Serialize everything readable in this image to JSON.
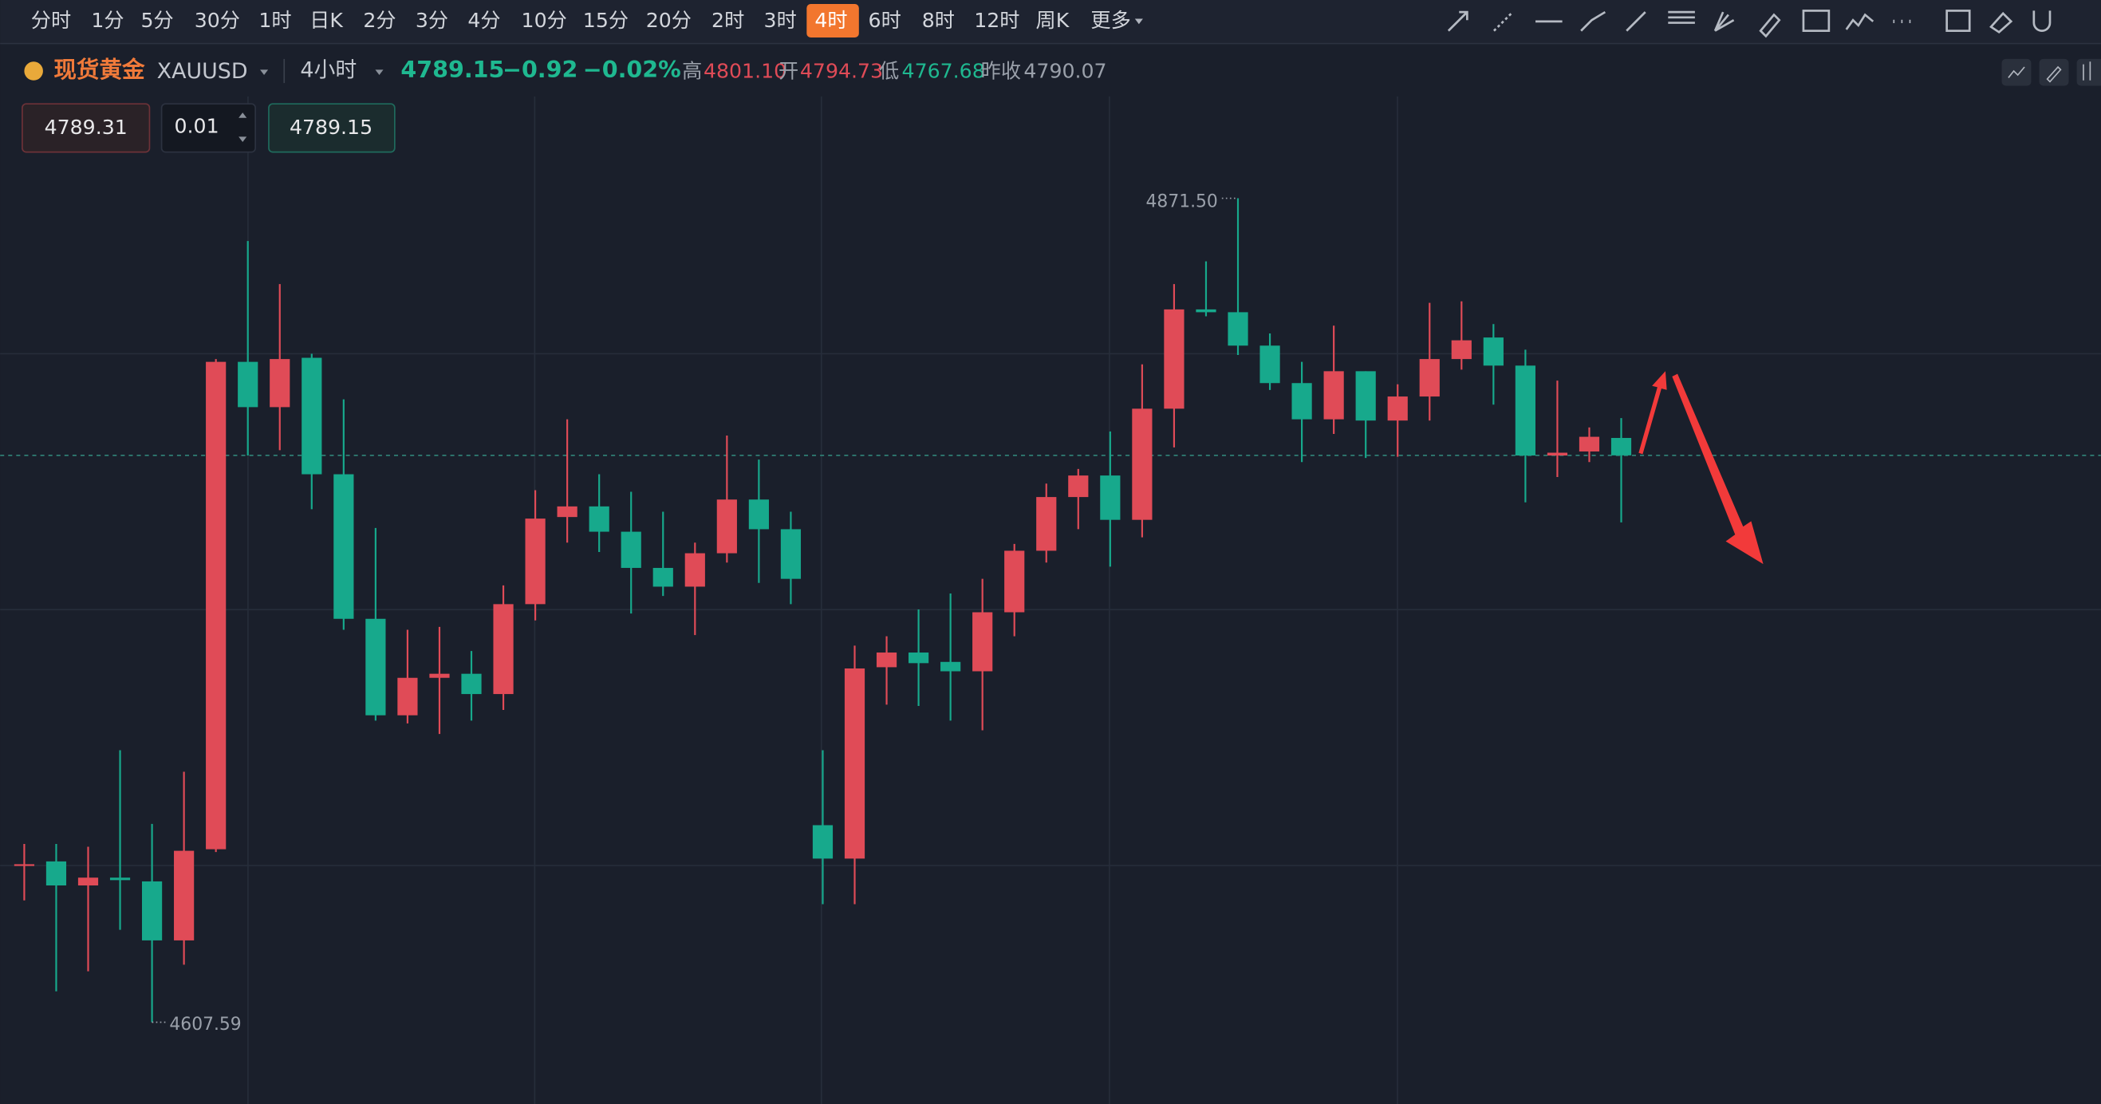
{
  "toolbar": {
    "timeframes": [
      "分时",
      "1分",
      "5分",
      "30分",
      "1时",
      "日K",
      "2分",
      "3分",
      "4分",
      "10分",
      "15分",
      "20分",
      "2时",
      "3时",
      "4时",
      "6时",
      "8时",
      "12时",
      "周K"
    ],
    "active_index": 14,
    "more": "更多"
  },
  "header": {
    "name": "现货黄金",
    "symbol": "XAUUSD",
    "interval": "4小时",
    "price": "4789.15",
    "change": "−0.92",
    "change_pct": "−0.02%",
    "high_label": "高",
    "high": "4801.10",
    "open_label": "开",
    "open": "4794.73",
    "low_label": "低",
    "low": "4767.68",
    "prev_close_label": "昨收",
    "prev_close": "4790.07"
  },
  "order": {
    "sell": "4789.31",
    "qty": "0.01",
    "buy": "4789.15"
  },
  "chart_data": {
    "type": "candlestick",
    "up_color": "#e04b57",
    "down_color": "#17a98c",
    "ylim": [
      4581.4,
      4904.1
    ],
    "open": [
      4658.2,
      4659.1,
      4651.4,
      4653.9,
      4652.7,
      4633.8,
      4663.0,
      4819.1,
      4804.6,
      4820.4,
      4783.1,
      4736.8,
      4705.9,
      4717.9,
      4719.2,
      4712.7,
      4741.5,
      4769.4,
      4772.8,
      4764.7,
      4753.1,
      4747.1,
      4757.8,
      4775.0,
      4765.5,
      4670.7,
      4660.0,
      4721.3,
      4726.0,
      4723.0,
      4720.0,
      4738.9,
      4758.6,
      4775.8,
      4782.7,
      4768.5,
      4804.1,
      4835.9,
      4835.0,
      4824.3,
      4812.3,
      4800.7,
      4816.1,
      4800.3,
      4808.0,
      4820.0,
      4826.9,
      4817.9,
      4789.1,
      4790.4,
      4794.73
    ],
    "high": [
      4664.7,
      4664.7,
      4663.8,
      4694.7,
      4671.1,
      4687.8,
      4820.0,
      4857.8,
      4844.0,
      4821.7,
      4807.1,
      4765.9,
      4733.3,
      4734.2,
      4726.5,
      4747.5,
      4778.0,
      4800.7,
      4783.1,
      4777.5,
      4771.1,
      4761.2,
      4795.5,
      4787.8,
      4771.1,
      4694.7,
      4728.2,
      4731.2,
      4739.8,
      4744.9,
      4749.6,
      4760.8,
      4780.1,
      4784.8,
      4796.8,
      4818.3,
      4844.0,
      4851.3,
      4871.5,
      4828.2,
      4819.1,
      4830.7,
      4816.1,
      4811.9,
      4838.0,
      4838.5,
      4831.2,
      4823.0,
      4813.1,
      4798.1,
      4801.1
    ],
    "low": [
      4646.6,
      4617.5,
      4623.9,
      4637.2,
      4607.59,
      4626.0,
      4662.1,
      4789.1,
      4790.8,
      4771.9,
      4733.3,
      4704.2,
      4703.3,
      4699.9,
      4704.2,
      4707.6,
      4736.3,
      4761.2,
      4758.2,
      4738.5,
      4744.1,
      4731.6,
      4754.8,
      4748.3,
      4741.5,
      4645.4,
      4645.4,
      4709.3,
      4708.9,
      4704.2,
      4701.1,
      4731.2,
      4754.8,
      4765.5,
      4753.5,
      4762.9,
      4791.7,
      4833.7,
      4821.3,
      4810.1,
      4787.0,
      4796.0,
      4788.3,
      4788.7,
      4800.3,
      4816.6,
      4805.4,
      4774.1,
      4782.2,
      4787.0,
      4767.68
    ],
    "close": [
      4658.2,
      4651.4,
      4653.9,
      4653.1,
      4633.8,
      4662.5,
      4819.1,
      4804.6,
      4820.0,
      4783.1,
      4736.8,
      4705.9,
      4717.9,
      4719.2,
      4712.7,
      4741.5,
      4768.9,
      4772.8,
      4764.7,
      4753.1,
      4747.1,
      4757.8,
      4775.0,
      4765.5,
      4749.6,
      4660.0,
      4720.9,
      4726.0,
      4722.6,
      4720.0,
      4738.9,
      4758.6,
      4775.8,
      4782.7,
      4768.5,
      4804.1,
      4835.9,
      4835.0,
      4824.3,
      4812.3,
      4800.7,
      4816.1,
      4800.3,
      4808.0,
      4820.0,
      4826.0,
      4817.9,
      4789.1,
      4790.0,
      4795.1,
      4789.15
    ],
    "max_label": "4871.50",
    "min_label": "4607.59"
  }
}
